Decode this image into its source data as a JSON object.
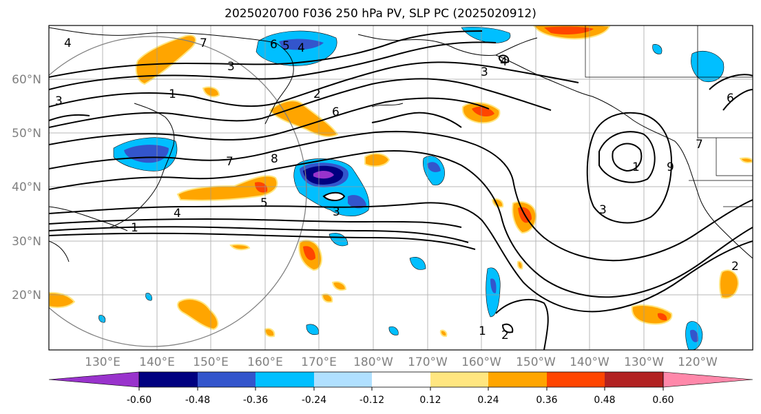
{
  "title": "2025020700 F036 250 hPa PV, SLP PC (2025020912)",
  "lat_labels": [
    "60°N",
    "50°N",
    "40°N",
    "30°N",
    "20°N"
  ],
  "lon_labels": [
    "130°E",
    "140°E",
    "150°E",
    "160°E",
    "170°E",
    "180°W",
    "170°W",
    "160°W",
    "150°W",
    "140°W",
    "130°W",
    "120°W"
  ],
  "contour_labels": [
    "4",
    "7",
    "3",
    "6",
    "5",
    "4",
    "3",
    "4",
    "1",
    "2",
    "6",
    "3",
    "7",
    "8",
    "1",
    "5",
    "4",
    "3",
    "1",
    "9",
    "6",
    "7",
    "1",
    "2",
    "3",
    "2"
  ],
  "colorbar": {
    "ticks": [
      "-0.60",
      "-0.48",
      "-0.36",
      "-0.24",
      "-0.12",
      "0.12",
      "0.24",
      "0.36",
      "0.48",
      "0.60"
    ],
    "colors": [
      "#9933cc",
      "#000080",
      "#3355cc",
      "#00bfff",
      "#b0e0ff",
      "#ffffff",
      "#ffe680",
      "#ffa500",
      "#ff4500",
      "#b22222",
      "#ff88aa"
    ]
  }
}
